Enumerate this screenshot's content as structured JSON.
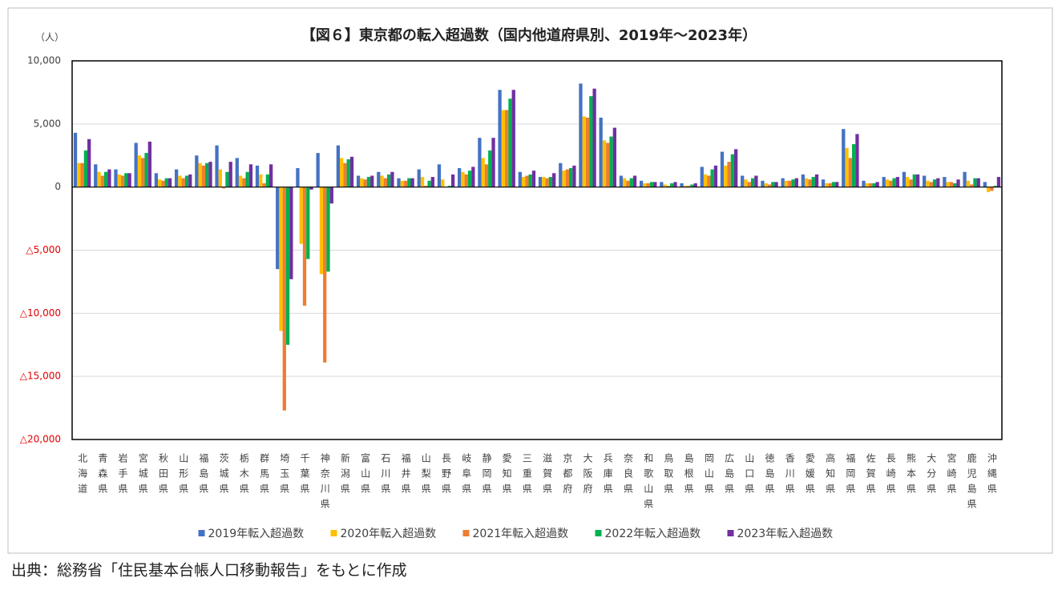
{
  "chart_data": {
    "type": "bar",
    "title": "【図６】東京都の転入超過数（国内他道府県別、2019年～2023年）",
    "y_unit": "（人）",
    "source": "出典：総務省「住民基本台帳人口移動報告」をもとに作成",
    "categories": [
      "北海道",
      "青森県",
      "岩手県",
      "宮城県",
      "秋田県",
      "山形県",
      "福島県",
      "茨城県",
      "栃木県",
      "群馬県",
      "埼玉県",
      "千葉県",
      "神奈川県",
      "新潟県",
      "富山県",
      "石川県",
      "福井県",
      "山梨県",
      "長野県",
      "岐阜県",
      "静岡県",
      "愛知県",
      "三重県",
      "滋賀県",
      "京都府",
      "大阪府",
      "兵庫県",
      "奈良県",
      "和歌山県",
      "鳥取県",
      "島根県",
      "岡山県",
      "広島県",
      "山口県",
      "徳島県",
      "香川県",
      "愛媛県",
      "高知県",
      "福岡県",
      "佐賀県",
      "長崎県",
      "熊本県",
      "大分県",
      "宮崎県",
      "鹿児島県",
      "沖縄県"
    ],
    "series": [
      {
        "name": "2019年転入超過数",
        "color": "#4472c4",
        "values": [
          4300,
          1800,
          1400,
          3500,
          1100,
          1400,
          2500,
          3300,
          2300,
          1700,
          -6500,
          1500,
          2700,
          3300,
          900,
          1200,
          700,
          1400,
          1800,
          1500,
          3900,
          7700,
          1200,
          800,
          1900,
          8200,
          5500,
          900,
          500,
          400,
          300,
          1600,
          2800,
          900,
          500,
          700,
          1000,
          600,
          4600,
          500,
          800,
          1200,
          900,
          800,
          1200,
          400
        ]
      },
      {
        "name": "2020年転入超過数",
        "color": "#ffc000",
        "values": [
          1900,
          1200,
          1000,
          2500,
          600,
          900,
          1900,
          1400,
          900,
          1000,
          -11400,
          -4500,
          -6900,
          2300,
          700,
          900,
          500,
          800,
          600,
          1200,
          2300,
          6100,
          800,
          800,
          1300,
          5600,
          3700,
          700,
          300,
          200,
          100,
          1000,
          1700,
          600,
          300,
          500,
          700,
          300,
          3100,
          300,
          600,
          800,
          500,
          400,
          500,
          -400
        ]
      },
      {
        "name": "2021年転入超過数",
        "color": "#ed7d31",
        "values": [
          1900,
          900,
          900,
          2300,
          500,
          700,
          1700,
          -100,
          700,
          300,
          -17700,
          -9400,
          -13900,
          1900,
          600,
          700,
          500,
          100,
          0,
          1000,
          1800,
          6100,
          900,
          700,
          1400,
          5500,
          3500,
          500,
          300,
          100,
          100,
          900,
          2000,
          400,
          200,
          500,
          600,
          300,
          2300,
          300,
          500,
          600,
          400,
          400,
          200,
          -300
        ]
      },
      {
        "name": "2022年転入超過数",
        "color": "#00b050",
        "values": [
          2900,
          1200,
          1100,
          2700,
          700,
          900,
          1900,
          1200,
          1200,
          1000,
          -12500,
          -5700,
          -6700,
          2200,
          800,
          1000,
          700,
          500,
          100,
          1300,
          2900,
          7000,
          1000,
          800,
          1500,
          7200,
          4000,
          700,
          400,
          300,
          200,
          1400,
          2600,
          700,
          400,
          600,
          800,
          400,
          3400,
          300,
          700,
          1000,
          600,
          300,
          700,
          100
        ]
      },
      {
        "name": "2023年転入超過数",
        "color": "#7030a0",
        "values": [
          3800,
          1400,
          1100,
          3600,
          700,
          1000,
          2000,
          2000,
          1800,
          1800,
          -7300,
          -200,
          -1300,
          2400,
          900,
          1200,
          700,
          800,
          1000,
          1600,
          3900,
          7700,
          1300,
          1100,
          1700,
          7800,
          4700,
          900,
          400,
          400,
          300,
          1700,
          3000,
          900,
          400,
          700,
          1000,
          400,
          4200,
          400,
          800,
          1000,
          700,
          600,
          700,
          800
        ]
      }
    ],
    "ylim": [
      -20000,
      10000
    ],
    "yticks": [
      {
        "value": 10000,
        "label": "10,000"
      },
      {
        "value": 5000,
        "label": "5,000"
      },
      0,
      {
        "value": -5000,
        "label": "△5,000"
      },
      {
        "value": -10000,
        "label": "△10,000"
      },
      {
        "value": -15000,
        "label": "△15,000"
      },
      {
        "value": -20000,
        "label": "△20,000"
      }
    ],
    "grid": true
  }
}
